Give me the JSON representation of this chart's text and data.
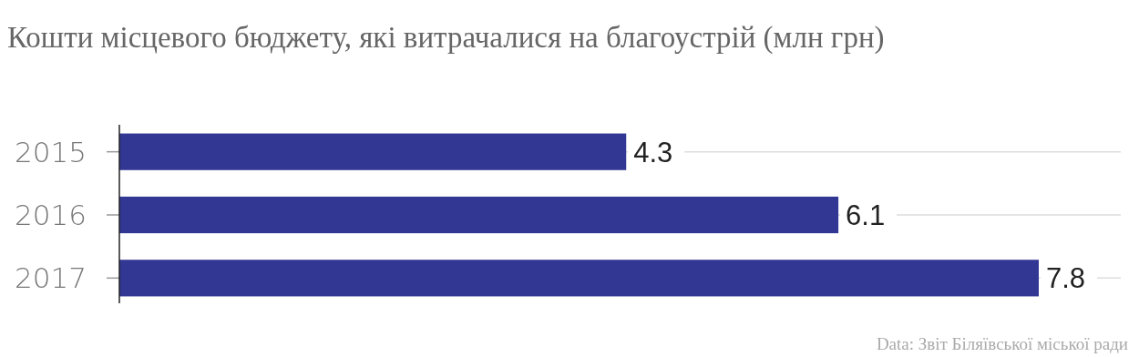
{
  "chart_data": {
    "type": "bar",
    "orientation": "horizontal",
    "title": "Кошти місцевого бюджету, які витрачалися на благоустрій (млн грн)",
    "categories": [
      "2015",
      "2016",
      "2017"
    ],
    "values": [
      4.3,
      6.1,
      7.8
    ],
    "color": "#333794",
    "data_labels": true,
    "grid": "y",
    "annotations": [
      "Data: Звіт Біляївської міської ради"
    ]
  }
}
